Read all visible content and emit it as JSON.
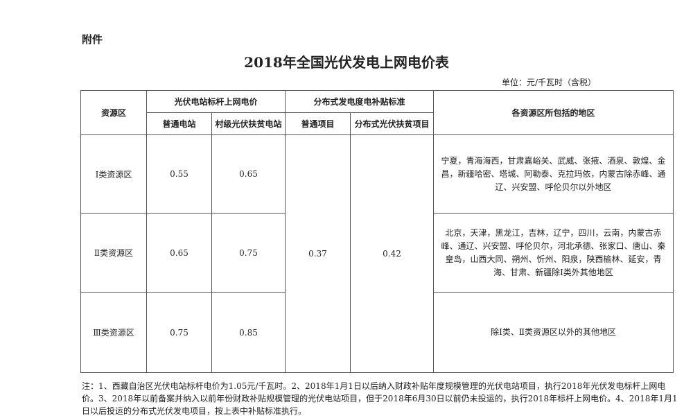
{
  "attachment_label": "附件",
  "title": "2018年全国光伏发电上网电价表",
  "unit": "单位：元/千瓦时（含税）",
  "headers": {
    "zone": "资源区",
    "benchmark_group": "光伏电站标杆上网电价",
    "benchmark_normal": "普通电站",
    "benchmark_village": "村级光伏扶贫电站",
    "subsidy_group": "分布式发电度电补贴标准",
    "subsidy_normal": "普通项目",
    "subsidy_poverty": "分布式光伏扶贫项目",
    "regions": "各资源区所包括的地区"
  },
  "rows": [
    {
      "zone": "Ⅰ类资源区",
      "normal": "0.55",
      "village": "0.65",
      "regions": "宁夏，青海海西，甘肃嘉峪关、武威、张掖、酒泉、敦煌、金昌，新疆哈密、塔城、阿勒泰、克拉玛依，内蒙古除赤峰、通辽、兴安盟、呼伦贝尔以外地区"
    },
    {
      "zone": "Ⅱ类资源区",
      "normal": "0.65",
      "village": "0.75",
      "regions": "北京，天津，黑龙江，吉林，辽宁，四川，云南，内蒙古赤峰、通辽、兴安盟、呼伦贝尔，河北承德、张家口、唐山、秦皇岛，山西大同、朔州、忻州、阳泉，陕西榆林、延安，青海、甘肃、新疆除Ⅰ类外其他地区"
    },
    {
      "zone": "Ⅲ类资源区",
      "normal": "0.75",
      "village": "0.85",
      "regions": "除Ⅰ类、Ⅱ类资源区以外的其他地区"
    }
  ],
  "subsidy_normal_value": "0.37",
  "subsidy_poverty_value": "0.42",
  "note": "注：1、西藏自治区光伏电站标杆电价为1.05元/千瓦时。2、2018年1月1日以后纳入财政补贴年度规模管理的光伏电站项目，执行2018年光伏发电标杆上网电价。3、2018年以前备案并纳入以前年份财政补贴规模管理的光伏电站项目，但于2018年6月30日以前仍未投运的，执行2018年标杆上网电价。4、2018年1月1日以后投运的分布式光伏发电项目，按上表中补贴标准执行。"
}
